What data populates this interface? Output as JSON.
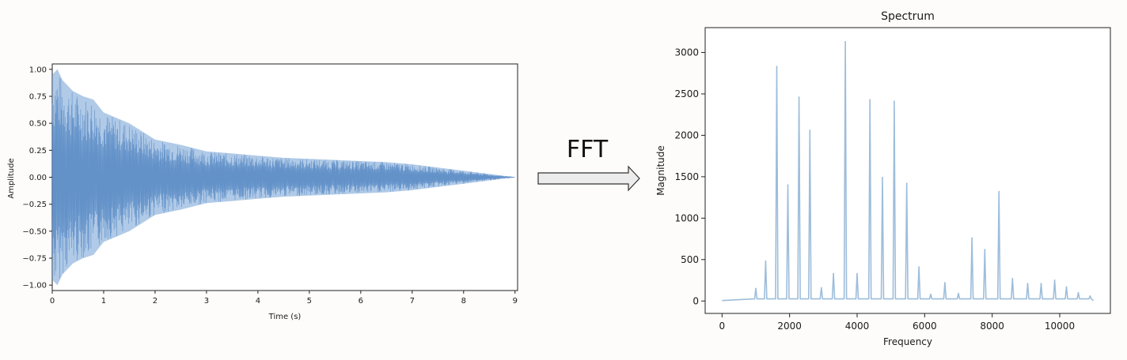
{
  "arrow_label": "FFT",
  "chart_data": [
    {
      "type": "area",
      "title": "",
      "xlabel": "Time (s)",
      "ylabel": "Amplitude",
      "xlim": [
        0,
        9.05
      ],
      "ylim": [
        -1.05,
        1.05
      ],
      "x_ticks": [
        0,
        1,
        2,
        3,
        4,
        5,
        6,
        7,
        8,
        9
      ],
      "x_tick_labels": [
        "0",
        "1",
        "2",
        "3",
        "4",
        "5",
        "6",
        "7",
        "8",
        "9"
      ],
      "y_ticks": [
        1.0,
        0.75,
        0.5,
        0.25,
        0.0,
        -0.25,
        -0.5,
        -0.75,
        -1.0
      ],
      "y_tick_labels": [
        "1.00",
        "0.75",
        "0.50",
        "0.25",
        "0.00",
        "−0.25",
        "−0.50",
        "−0.75",
        "−1.00"
      ],
      "color": "#6f9fd4",
      "envelope": {
        "x": [
          0,
          0.1,
          0.2,
          0.4,
          0.6,
          0.8,
          1.0,
          1.5,
          2.0,
          2.5,
          3.0,
          3.5,
          4.0,
          4.5,
          5.0,
          5.5,
          6.0,
          6.5,
          7.0,
          7.5,
          8.0,
          8.5,
          9.0
        ],
        "upper": [
          0.95,
          1.0,
          0.9,
          0.8,
          0.75,
          0.72,
          0.6,
          0.5,
          0.35,
          0.3,
          0.24,
          0.22,
          0.2,
          0.18,
          0.17,
          0.16,
          0.15,
          0.14,
          0.12,
          0.09,
          0.06,
          0.03,
          0.0
        ],
        "lower": [
          -0.95,
          -1.0,
          -0.9,
          -0.8,
          -0.75,
          -0.72,
          -0.6,
          -0.5,
          -0.35,
          -0.3,
          -0.24,
          -0.22,
          -0.2,
          -0.18,
          -0.17,
          -0.16,
          -0.15,
          -0.14,
          -0.12,
          -0.09,
          -0.06,
          -0.03,
          0.0
        ]
      },
      "grid": false,
      "legend": "none"
    },
    {
      "type": "line",
      "title": "Spectrum",
      "xlabel": "Frequency",
      "ylabel": "Magnitude",
      "xlim": [
        -500,
        11500
      ],
      "ylim": [
        -150,
        3300
      ],
      "x_ticks": [
        0,
        2000,
        4000,
        6000,
        8000,
        10000
      ],
      "x_tick_labels": [
        "0",
        "2000",
        "4000",
        "6000",
        "8000",
        "10000"
      ],
      "y_ticks": [
        0,
        500,
        1000,
        1500,
        2000,
        2500,
        3000
      ],
      "y_tick_labels": [
        "0",
        "500",
        "1000",
        "1500",
        "2000",
        "2500",
        "3000"
      ],
      "color": "#9dbddb",
      "peaks": {
        "frequency": [
          1000,
          1290,
          1620,
          1950,
          2280,
          2600,
          2940,
          3300,
          3650,
          4000,
          4380,
          4750,
          5100,
          5470,
          5830,
          6180,
          6600,
          7000,
          7400,
          7780,
          8200,
          8600,
          9050,
          9450,
          9850,
          10200,
          10550,
          10900
        ],
        "magnitude": [
          150,
          480,
          2830,
          1400,
          2460,
          2060,
          160,
          330,
          3130,
          330,
          2430,
          1490,
          2410,
          1420,
          410,
          80,
          220,
          90,
          760,
          620,
          1320,
          270,
          210,
          210,
          250,
          170,
          100,
          60
        ]
      },
      "grid": false,
      "legend": "none"
    }
  ]
}
